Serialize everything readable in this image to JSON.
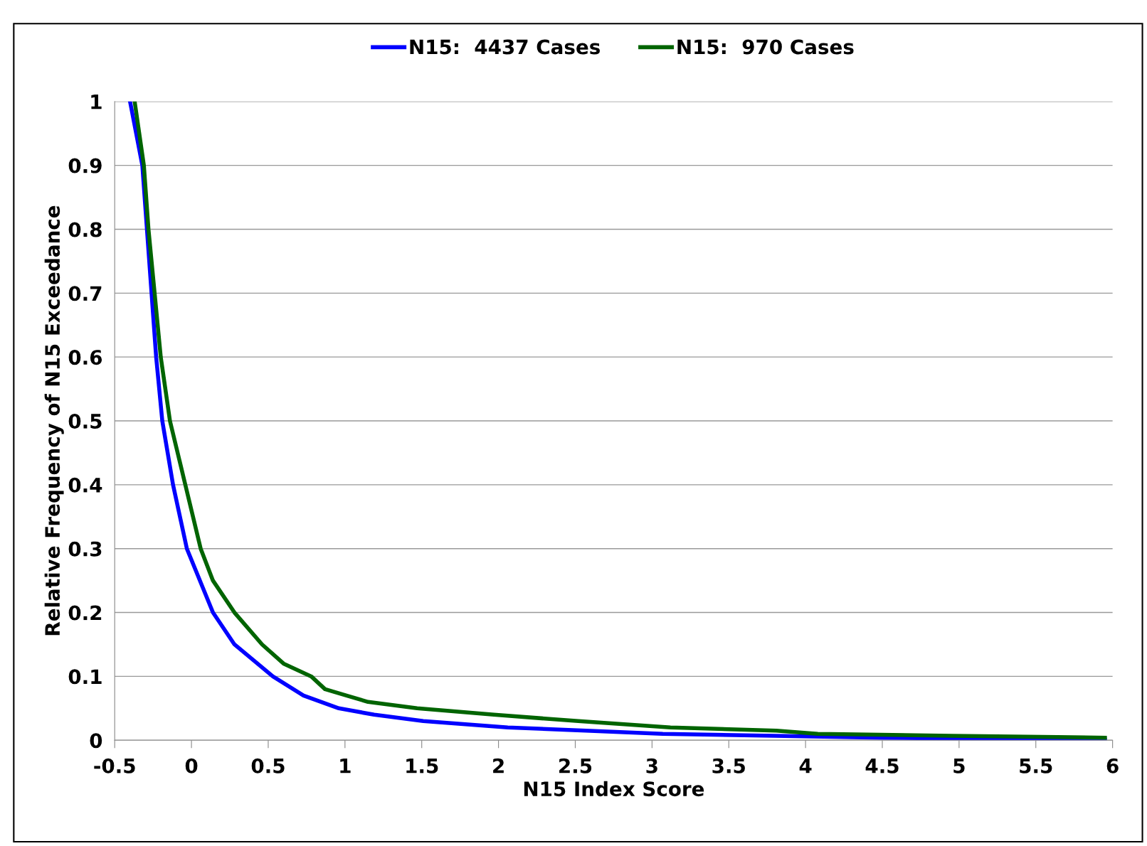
{
  "chart_data": {
    "type": "line",
    "xlabel": "N15 Index Score",
    "ylabel": "Relative Frequency of N15 Exceedance",
    "xlim": [
      -0.5,
      6
    ],
    "xticks": [
      -0.5,
      0,
      0.5,
      1,
      1.5,
      2,
      2.5,
      3,
      3.5,
      4,
      4.5,
      5,
      5.5,
      6
    ],
    "ylim": [
      0,
      1
    ],
    "yticks": [
      0,
      0.1,
      0.2,
      0.3,
      0.4,
      0.5,
      0.6,
      0.7,
      0.8,
      0.9,
      1
    ],
    "grid": "y",
    "legend": "top",
    "line_style": "solid",
    "marker": "none",
    "series": [
      {
        "name": "N15:  4437 Cases",
        "color": "#0000ff",
        "x": [
          -0.4,
          -0.32,
          -0.26,
          -0.23,
          -0.19,
          -0.12,
          -0.03,
          0.14,
          0.28,
          0.53,
          0.73,
          0.96,
          1.19,
          1.51,
          2.06,
          2.57,
          3.07,
          3.8,
          4.5,
          5.18,
          5.95
        ],
        "values": [
          1,
          0.9,
          0.7,
          0.6,
          0.5,
          0.4,
          0.3,
          0.2,
          0.15,
          0.1,
          0.07,
          0.05,
          0.04,
          0.03,
          0.02,
          0.015,
          0.01,
          0.007,
          0.004,
          0.002,
          0.001
        ]
      },
      {
        "name": "N15:  970 Cases",
        "color": "#006400",
        "x": [
          -0.37,
          -0.31,
          -0.28,
          -0.24,
          -0.2,
          -0.14,
          -0.04,
          0.06,
          0.14,
          0.28,
          0.46,
          0.6,
          0.78,
          0.87,
          1.01,
          1.15,
          1.47,
          1.97,
          2.52,
          3.12,
          3.81,
          4.08,
          4.95,
          5.64,
          5.95
        ],
        "values": [
          1,
          0.9,
          0.8,
          0.7,
          0.6,
          0.5,
          0.4,
          0.3,
          0.25,
          0.2,
          0.15,
          0.12,
          0.1,
          0.08,
          0.07,
          0.06,
          0.05,
          0.04,
          0.03,
          0.02,
          0.015,
          0.01,
          0.007,
          0.005,
          0.004
        ]
      }
    ]
  }
}
